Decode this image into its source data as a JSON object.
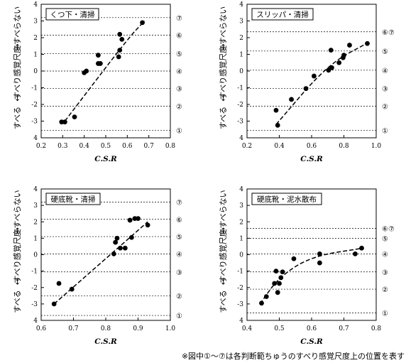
{
  "footnote": "※図中①～⑦は各判断範ちゅうのすべり感覚尺度上の位置を表す",
  "ylabel_parts": [
    "すべる",
    "←",
    "すべり感覚尺度",
    "→",
    "すべらない"
  ],
  "chart_data": [
    {
      "type": "scatter",
      "title": "くつ下・清掃",
      "xlabel": "C.S.R",
      "xlim": [
        0.2,
        0.8
      ],
      "xticks": [
        "0.2",
        "0.3",
        "0.4",
        "0.5",
        "0.6",
        "0.7",
        "0.8"
      ],
      "ylim": [
        -4,
        4
      ],
      "yticks": [
        "4",
        "3",
        "2",
        "1",
        "0",
        "-1",
        "-2",
        "-3",
        "4"
      ],
      "category_lines": [
        {
          "label": "⑦",
          "y": 3.2
        },
        {
          "label": "⑥",
          "y": 2.15
        },
        {
          "label": "⑤",
          "y": 1.05
        },
        {
          "label": "④",
          "y": 0.0
        },
        {
          "label": "③",
          "y": -1.05
        },
        {
          "label": "②",
          "y": -2.1
        },
        {
          "label": "①",
          "y": -3.55
        }
      ],
      "points": [
        {
          "x": 0.295,
          "y": -3.05
        },
        {
          "x": 0.31,
          "y": -3.05
        },
        {
          "x": 0.355,
          "y": -2.75
        },
        {
          "x": 0.4,
          "y": -0.1
        },
        {
          "x": 0.41,
          "y": 0.0
        },
        {
          "x": 0.465,
          "y": 0.95
        },
        {
          "x": 0.465,
          "y": 0.45
        },
        {
          "x": 0.475,
          "y": 0.45
        },
        {
          "x": 0.56,
          "y": 0.85
        },
        {
          "x": 0.565,
          "y": 1.25
        },
        {
          "x": 0.565,
          "y": 2.2
        },
        {
          "x": 0.575,
          "y": 1.9
        },
        {
          "x": 0.67,
          "y": 2.9
        }
      ],
      "trend": [
        [
          0.31,
          -3.0
        ],
        [
          0.6,
          1.9
        ],
        [
          0.68,
          3.0
        ]
      ]
    },
    {
      "type": "scatter",
      "title": "スリッパ・清掃",
      "xlabel": "C.S.R",
      "xlim": [
        0.2,
        1.0
      ],
      "xticks": [
        "0.2",
        "0.4",
        "0.6",
        "0.8",
        "1.0"
      ],
      "ylim": [
        -4,
        4
      ],
      "yticks": [
        "4",
        "3",
        "2",
        "1",
        "0",
        "-1",
        "-2",
        "-3",
        "4"
      ],
      "category_lines": [
        {
          "label": "⑥⑦",
          "y": 2.35
        },
        {
          "label": "⑤",
          "y": 1.2
        },
        {
          "label": "④",
          "y": 0.05
        },
        {
          "label": "③",
          "y": -1.05
        },
        {
          "label": "②",
          "y": -2.1
        },
        {
          "label": "①",
          "y": -3.55
        }
      ],
      "points": [
        {
          "x": 0.38,
          "y": -2.35
        },
        {
          "x": 0.39,
          "y": -3.25
        },
        {
          "x": 0.475,
          "y": -1.7
        },
        {
          "x": 0.565,
          "y": -1.05
        },
        {
          "x": 0.615,
          "y": -0.3
        },
        {
          "x": 0.705,
          "y": 0.05
        },
        {
          "x": 0.72,
          "y": 1.25
        },
        {
          "x": 0.725,
          "y": 0.2
        },
        {
          "x": 0.77,
          "y": 0.5
        },
        {
          "x": 0.795,
          "y": 0.8
        },
        {
          "x": 0.8,
          "y": 0.95
        },
        {
          "x": 0.835,
          "y": 1.55
        },
        {
          "x": 0.945,
          "y": 1.65
        }
      ],
      "trend": [
        [
          0.38,
          -3.2
        ],
        [
          0.7,
          0.4
        ],
        [
          0.96,
          1.75
        ]
      ]
    },
    {
      "type": "scatter",
      "title": "硬底靴・清掃",
      "xlabel": "C.S.R",
      "xlim": [
        0.6,
        1.0
      ],
      "xticks": [
        "0.6",
        "0.7",
        "0.8",
        "0.9",
        "1.0"
      ],
      "ylim": [
        -4,
        4
      ],
      "yticks": [
        "4",
        "3",
        "2",
        "1",
        "0",
        "-1",
        "-2",
        "-3",
        "4"
      ],
      "category_lines": [
        {
          "label": "⑦",
          "y": 3.2
        },
        {
          "label": "⑥",
          "y": 2.15
        },
        {
          "label": "⑤",
          "y": 1.1
        },
        {
          "label": "④",
          "y": 0.05
        },
        {
          "label": "③",
          "y": -1.05
        },
        {
          "label": "②",
          "y": -2.5
        },
        {
          "label": "①",
          "y": -3.7
        }
      ],
      "points": [
        {
          "x": 0.64,
          "y": -3.0
        },
        {
          "x": 0.655,
          "y": -1.75
        },
        {
          "x": 0.695,
          "y": -2.1
        },
        {
          "x": 0.825,
          "y": 0.05
        },
        {
          "x": 0.83,
          "y": 0.75
        },
        {
          "x": 0.835,
          "y": 1.0
        },
        {
          "x": 0.845,
          "y": 0.4
        },
        {
          "x": 0.86,
          "y": 0.4
        },
        {
          "x": 0.875,
          "y": 2.1
        },
        {
          "x": 0.88,
          "y": 1.05
        },
        {
          "x": 0.89,
          "y": 2.2
        },
        {
          "x": 0.9,
          "y": 2.2
        },
        {
          "x": 0.93,
          "y": 1.8
        }
      ],
      "trend": [
        [
          0.64,
          -3.0
        ],
        [
          0.93,
          2.0
        ]
      ]
    },
    {
      "type": "scatter",
      "title": "硬底靴・泥水散布",
      "xlabel": "C.S.R",
      "xlim": [
        0.4,
        0.8
      ],
      "xticks": [
        "0.4",
        "0.5",
        "0.6",
        "0.7",
        "0.8"
      ],
      "ylim": [
        -4,
        4
      ],
      "yticks": [
        "4",
        "3",
        "2",
        "1",
        "0",
        "-1",
        "-2",
        "-3",
        "4"
      ],
      "category_lines": [
        {
          "label": "⑥⑦",
          "y": 1.6
        },
        {
          "label": "⑤",
          "y": 1.0
        },
        {
          "label": "④",
          "y": 0.05
        },
        {
          "label": "③",
          "y": -1.05
        },
        {
          "label": "②",
          "y": -2.1
        },
        {
          "label": "①",
          "y": -3.55
        }
      ],
      "points": [
        {
          "x": 0.445,
          "y": -2.95
        },
        {
          "x": 0.46,
          "y": -2.55
        },
        {
          "x": 0.485,
          "y": -1.75
        },
        {
          "x": 0.49,
          "y": -1.0
        },
        {
          "x": 0.495,
          "y": -2.3
        },
        {
          "x": 0.5,
          "y": -1.75
        },
        {
          "x": 0.505,
          "y": -1.4
        },
        {
          "x": 0.51,
          "y": -1.05
        },
        {
          "x": 0.545,
          "y": -0.25
        },
        {
          "x": 0.625,
          "y": 0.05
        },
        {
          "x": 0.625,
          "y": -0.5
        },
        {
          "x": 0.735,
          "y": 0.05
        },
        {
          "x": 0.755,
          "y": 0.4
        }
      ],
      "trend": [
        [
          0.44,
          -3.0
        ],
        [
          0.5,
          -1.35
        ],
        [
          0.6,
          -0.1
        ],
        [
          0.76,
          0.4
        ]
      ]
    }
  ]
}
